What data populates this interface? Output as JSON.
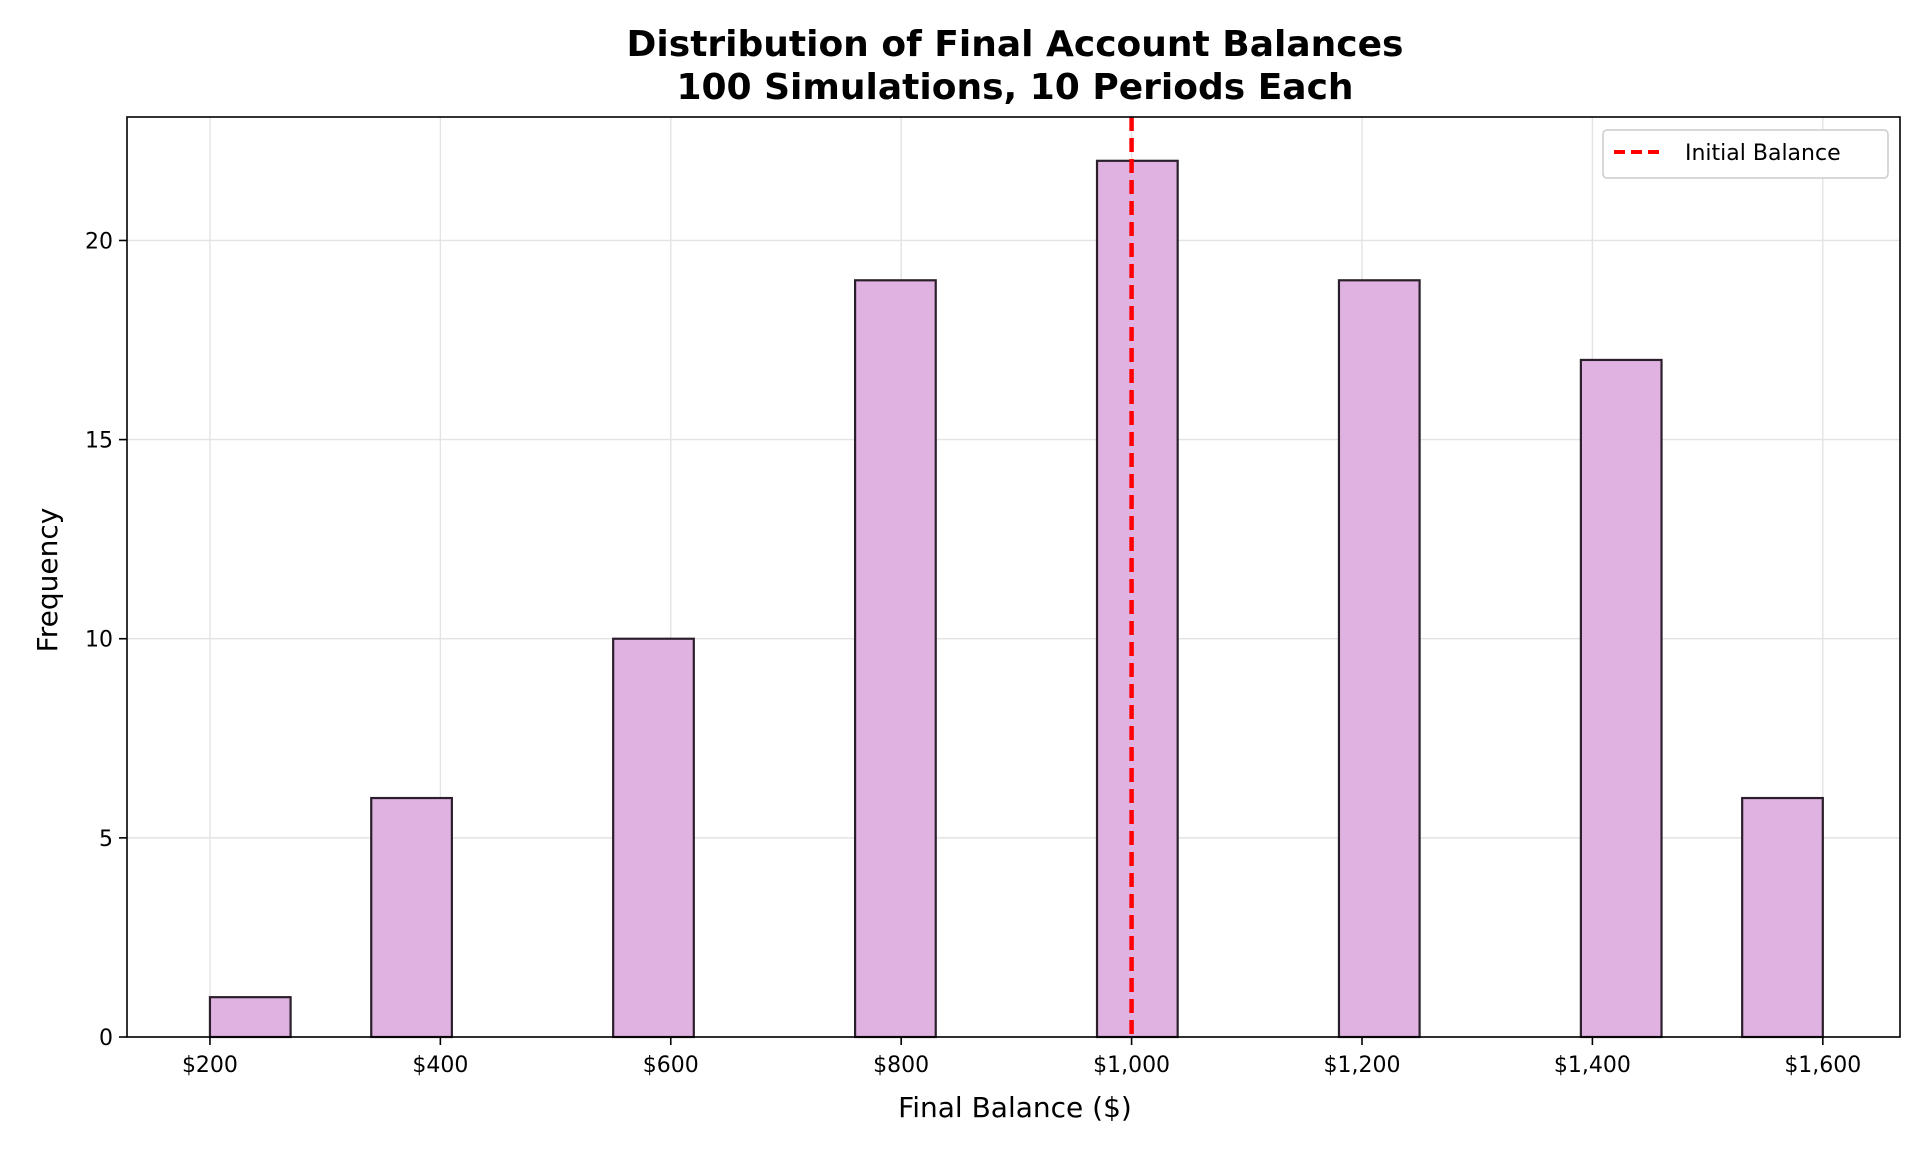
{
  "chart_data": {
    "type": "bar",
    "title_line1": "Distribution of Final Account Balances",
    "title_line2": "100 Simulations, 10 Periods Each",
    "xlabel": "Final Balance ($)",
    "ylabel": "Frequency",
    "xlim": [
      128,
      1667
    ],
    "ylim": [
      0,
      23.1
    ],
    "xticks": [
      200,
      400,
      600,
      800,
      1000,
      1200,
      1400,
      1600
    ],
    "xtick_labels": [
      "$200",
      "$400",
      "$600",
      "$800",
      "$1,000",
      "$1,200",
      "$1,400",
      "$1,600"
    ],
    "yticks": [
      0,
      5,
      10,
      15,
      20
    ],
    "ytick_labels": [
      "0",
      "5",
      "10",
      "15",
      "20"
    ],
    "bins": [
      {
        "start": 200,
        "end": 270,
        "count": 1
      },
      {
        "start": 340,
        "end": 410,
        "count": 6
      },
      {
        "start": 550,
        "end": 620,
        "count": 10
      },
      {
        "start": 760,
        "end": 830,
        "count": 19
      },
      {
        "start": 970,
        "end": 1040,
        "count": 22
      },
      {
        "start": 1180,
        "end": 1250,
        "count": 19
      },
      {
        "start": 1390,
        "end": 1460,
        "count": 17
      },
      {
        "start": 1530,
        "end": 1600,
        "count": 6
      }
    ],
    "reference_line": {
      "x": 1000,
      "label": "Initial Balance",
      "color": "#ff0000",
      "style": "dashed"
    },
    "bar_color": "#e0b2e1",
    "bar_edge_color": "#2b1f2b",
    "grid": true,
    "legend_position": "top-right"
  }
}
